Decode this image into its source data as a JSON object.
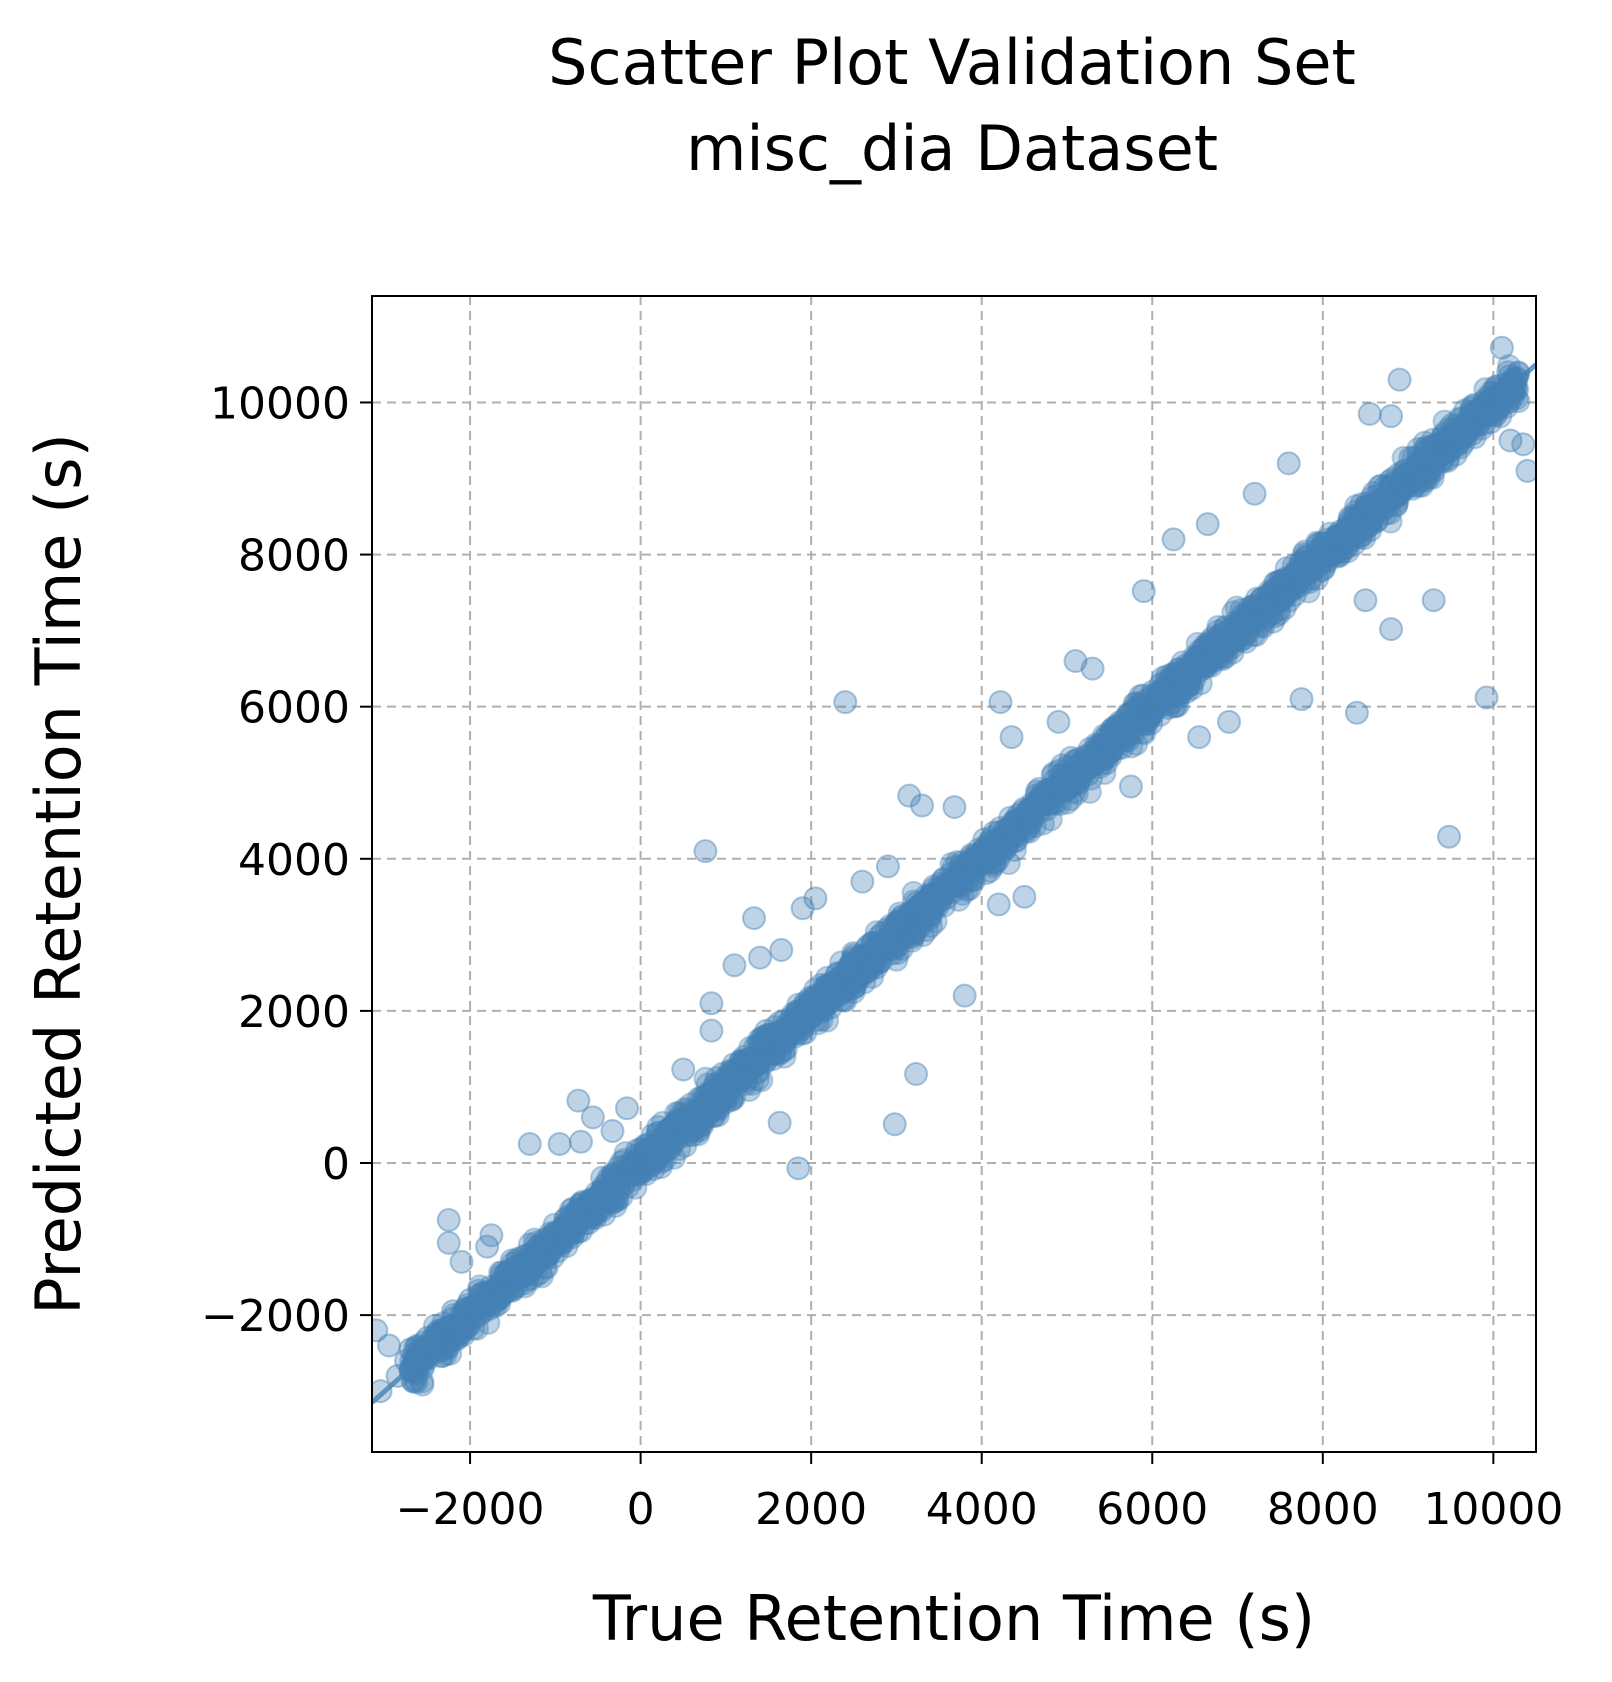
{
  "chart_data": {
    "type": "scatter",
    "title": "Scatter Plot Validation Set",
    "subtitle": "misc_dia Dataset",
    "xlabel": "True Retention Time (s)",
    "ylabel": "Predicted Retention Time (s)",
    "xlim": [
      -3150,
      10500
    ],
    "ylim": [
      -3800,
      11400
    ],
    "xticks": [
      -2000,
      0,
      2000,
      4000,
      6000,
      8000,
      10000
    ],
    "xtick_labels": [
      "−2000",
      "0",
      "2000",
      "4000",
      "6000",
      "8000",
      "10000"
    ],
    "yticks": [
      -2000,
      0,
      2000,
      4000,
      6000,
      8000,
      10000
    ],
    "ytick_labels": [
      "−2000",
      "0",
      "2000",
      "4000",
      "6000",
      "8000",
      "10000"
    ],
    "grid": true,
    "grid_style": "dashed",
    "point_color": "#4682b4",
    "point_alpha": 0.35,
    "reference_line": {
      "x": [
        -3150,
        10500
      ],
      "y": [
        -3150,
        10500
      ],
      "color": "#4682b4"
    },
    "points_note_dense_band": {
      "x_from": -2700,
      "x_to": 10300,
      "slope": 1.0,
      "spread": 260
    },
    "points": [
      [
        -2700,
        -2450
      ],
      [
        -2500,
        -2300
      ],
      [
        -2300,
        -2200
      ],
      [
        -2200,
        -1950
      ],
      [
        -2000,
        -1800
      ],
      [
        -1800,
        -1700
      ],
      [
        -1600,
        -1500
      ],
      [
        -1400,
        -1300
      ],
      [
        -1200,
        -1100
      ],
      [
        -1000,
        -950
      ],
      [
        -800,
        -700
      ],
      [
        -600,
        -500
      ],
      [
        -400,
        -350
      ],
      [
        -200,
        -100
      ],
      [
        0,
        50
      ],
      [
        200,
        250
      ],
      [
        400,
        450
      ],
      [
        600,
        650
      ],
      [
        800,
        850
      ],
      [
        1000,
        1100
      ],
      [
        1200,
        1250
      ],
      [
        1400,
        1500
      ],
      [
        1600,
        1700
      ],
      [
        1800,
        1900
      ],
      [
        2000,
        2100
      ],
      [
        2200,
        2300
      ],
      [
        2400,
        2450
      ],
      [
        2600,
        2700
      ],
      [
        2800,
        2900
      ],
      [
        3000,
        3100
      ],
      [
        3200,
        3300
      ],
      [
        3400,
        3500
      ],
      [
        3600,
        3650
      ],
      [
        3800,
        3900
      ],
      [
        4000,
        4100
      ],
      [
        4200,
        4350
      ],
      [
        4400,
        4500
      ],
      [
        4600,
        4700
      ],
      [
        4800,
        4900
      ],
      [
        5000,
        5100
      ],
      [
        5200,
        5300
      ],
      [
        5400,
        5500
      ],
      [
        5600,
        5700
      ],
      [
        5800,
        5900
      ],
      [
        6000,
        6150
      ],
      [
        6200,
        6350
      ],
      [
        6400,
        6550
      ],
      [
        6600,
        6750
      ],
      [
        6800,
        6950
      ],
      [
        7000,
        7100
      ],
      [
        7200,
        7300
      ],
      [
        7400,
        7500
      ],
      [
        7600,
        7650
      ],
      [
        7800,
        7800
      ],
      [
        8000,
        8100
      ],
      [
        8200,
        8300
      ],
      [
        8400,
        8500
      ],
      [
        8600,
        8650
      ],
      [
        8800,
        8800
      ],
      [
        9000,
        9000
      ],
      [
        9200,
        9200
      ],
      [
        9400,
        9400
      ],
      [
        9600,
        9650
      ],
      [
        9800,
        9800
      ],
      [
        10000,
        10000
      ],
      [
        10200,
        10150
      ],
      [
        -3050,
        -3000
      ],
      [
        -2950,
        -2400
      ],
      [
        -2850,
        -2800
      ],
      [
        -2750,
        -2600
      ],
      [
        -3100,
        -2200
      ],
      [
        -2250,
        -750
      ],
      [
        -2250,
        -1050
      ],
      [
        -2100,
        -1300
      ],
      [
        -1750,
        -950
      ],
      [
        -1800,
        -1100
      ],
      [
        -1300,
        250
      ],
      [
        -950,
        250
      ],
      [
        -730,
        820
      ],
      [
        -700,
        280
      ],
      [
        -560,
        600
      ],
      [
        -330,
        420
      ],
      [
        -160,
        720
      ],
      [
        500,
        1230
      ],
      [
        830,
        1740
      ],
      [
        830,
        2100
      ],
      [
        1330,
        3220
      ],
      [
        1100,
        2600
      ],
      [
        1400,
        2700
      ],
      [
        1650,
        2800
      ],
      [
        1630,
        530
      ],
      [
        1850,
        -70
      ],
      [
        2050,
        3480
      ],
      [
        1900,
        3350
      ],
      [
        2400,
        6060
      ],
      [
        760,
        4100
      ],
      [
        2600,
        3700
      ],
      [
        2900,
        3900
      ],
      [
        2980,
        510
      ],
      [
        3230,
        1170
      ],
      [
        3800,
        2200
      ],
      [
        3150,
        4830
      ],
      [
        3300,
        4700
      ],
      [
        3680,
        4680
      ],
      [
        4200,
        3400
      ],
      [
        4500,
        3500
      ],
      [
        4220,
        6060
      ],
      [
        4350,
        5600
      ],
      [
        4900,
        5800
      ],
      [
        5100,
        6600
      ],
      [
        5300,
        6500
      ],
      [
        5900,
        7520
      ],
      [
        5750,
        4950
      ],
      [
        6250,
        8200
      ],
      [
        6550,
        5600
      ],
      [
        6900,
        5800
      ],
      [
        6650,
        8400
      ],
      [
        7200,
        8800
      ],
      [
        7600,
        9200
      ],
      [
        7750,
        6100
      ],
      [
        8400,
        5920
      ],
      [
        8500,
        7400
      ],
      [
        8800,
        7020
      ],
      [
        8900,
        10300
      ],
      [
        8550,
        9850
      ],
      [
        8800,
        9820
      ],
      [
        9300,
        7400
      ],
      [
        9480,
        4290
      ],
      [
        9920,
        6120
      ],
      [
        10100,
        10720
      ],
      [
        10200,
        9500
      ],
      [
        10350,
        9450
      ],
      [
        10400,
        9100
      ]
    ]
  }
}
